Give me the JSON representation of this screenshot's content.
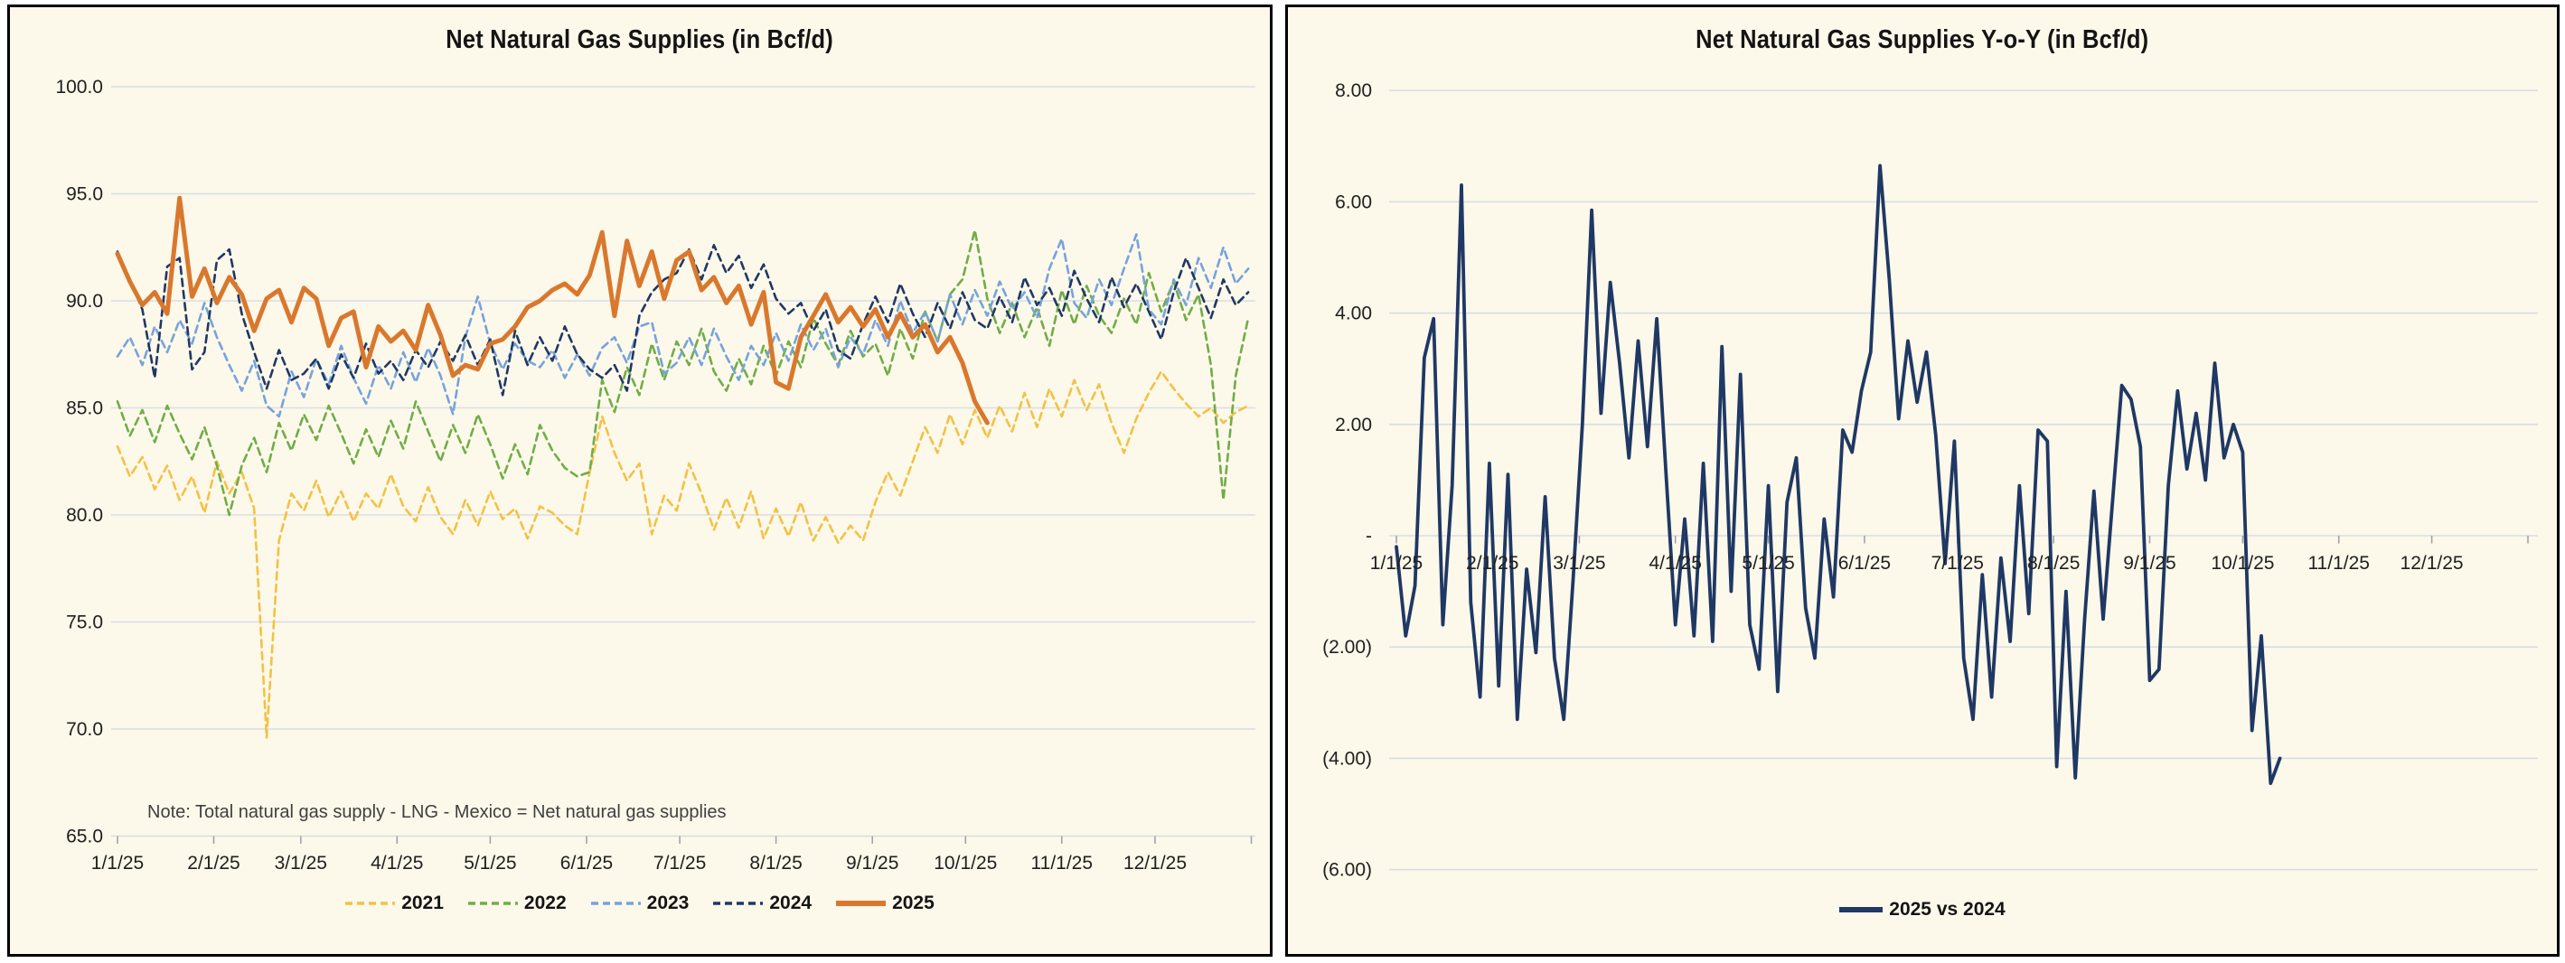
{
  "page": {
    "background": "#FFFFFF",
    "panel_background": "#FCF8EA",
    "panel_border": "#000000",
    "gridline_color": "#D9DDE3",
    "tick_color": "#9AA0A8",
    "axis_text_color": "#202020"
  },
  "chart_data": [
    {
      "type": "line",
      "title": "Net Natural Gas Supplies (in Bcf/d)",
      "note": "Note: Total natural gas supply - LNG - Mexico = Net natural gas supplies",
      "xlabel": "",
      "ylabel": "",
      "ylim": [
        65,
        100
      ],
      "y_tick_values": [
        100,
        95,
        90,
        85,
        80,
        75,
        70,
        65
      ],
      "y_tick_labels": [
        "100.0",
        "95.0",
        "90.0",
        "85.0",
        "80.0",
        "75.0",
        "70.0",
        "65.0"
      ],
      "x_tick_labels": [
        "1/1/25",
        "2/1/25",
        "3/1/25",
        "4/1/25",
        "5/1/25",
        "6/1/25",
        "7/1/25",
        "8/1/25",
        "9/1/25",
        "10/1/25",
        "11/1/25",
        "12/1/25"
      ],
      "month_days": [
        0,
        31,
        59,
        90,
        120,
        151,
        181,
        212,
        243,
        273,
        304,
        334
      ],
      "grid": true,
      "legend_position": "bottom",
      "series": [
        {
          "name": "2021",
          "color": "#F2C245",
          "dash": "dashed",
          "width": 2.6,
          "start_day": 0,
          "step_days": 4,
          "values": [
            83.2,
            81.8,
            82.7,
            81.2,
            82.3,
            80.7,
            81.8,
            80.1,
            82.5,
            81.0,
            82.0,
            80.3,
            69.6,
            78.8,
            81.0,
            80.2,
            81.6,
            79.9,
            81.1,
            79.7,
            81.0,
            80.3,
            81.9,
            80.4,
            79.7,
            81.3,
            79.9,
            79.1,
            80.7,
            79.5,
            81.1,
            79.8,
            80.3,
            78.9,
            80.4,
            80.1,
            79.5,
            79.1,
            82.0,
            84.6,
            82.9,
            81.6,
            82.4,
            79.1,
            80.9,
            80.2,
            82.4,
            81.0,
            79.3,
            80.8,
            79.4,
            81.1,
            78.9,
            80.3,
            79.0,
            80.6,
            78.8,
            79.9,
            78.7,
            79.5,
            78.8,
            80.6,
            82.0,
            80.9,
            82.5,
            84.1,
            82.9,
            84.7,
            83.3,
            84.9,
            83.6,
            85.1,
            83.9,
            85.7,
            84.1,
            85.9,
            84.6,
            86.3,
            84.9,
            86.1,
            84.3,
            82.9,
            84.5,
            85.7,
            86.7,
            85.9,
            85.2,
            84.6,
            85.0,
            84.3,
            84.8,
            85.1
          ]
        },
        {
          "name": "2022",
          "color": "#70AD47",
          "dash": "dashed",
          "width": 2.6,
          "start_day": 0,
          "step_days": 4,
          "values": [
            85.3,
            83.7,
            84.9,
            83.4,
            85.1,
            83.8,
            82.6,
            84.1,
            82.3,
            80.0,
            82.3,
            83.6,
            82.0,
            84.3,
            83.0,
            84.7,
            83.5,
            85.1,
            83.8,
            82.4,
            84.0,
            82.7,
            84.4,
            83.1,
            85.3,
            83.9,
            82.5,
            84.2,
            82.9,
            84.7,
            83.3,
            81.7,
            83.3,
            81.9,
            84.2,
            83.0,
            82.2,
            81.8,
            82.0,
            86.3,
            84.8,
            86.9,
            85.6,
            88.0,
            86.3,
            88.1,
            87.0,
            88.7,
            86.7,
            85.8,
            87.3,
            86.1,
            87.9,
            86.5,
            88.1,
            86.9,
            89.2,
            88.0,
            87.0,
            88.6,
            87.4,
            88.0,
            86.5,
            88.7,
            87.3,
            89.5,
            88.1,
            90.3,
            91.0,
            93.3,
            90.1,
            88.5,
            89.9,
            88.3,
            89.7,
            87.9,
            90.5,
            88.9,
            90.7,
            89.3,
            88.5,
            90.1,
            88.9,
            91.3,
            89.5,
            90.9,
            89.1,
            90.3,
            87.0,
            80.7,
            86.5,
            89.2
          ]
        },
        {
          "name": "2023",
          "color": "#76A3DB",
          "dash": "dashed",
          "width": 2.6,
          "start_day": 0,
          "step_days": 4,
          "values": [
            87.4,
            88.3,
            87.0,
            88.8,
            87.6,
            89.1,
            88.0,
            89.9,
            88.3,
            87.0,
            85.8,
            87.2,
            85.1,
            84.6,
            86.7,
            85.5,
            87.3,
            86.1,
            87.9,
            86.4,
            85.2,
            87.0,
            85.9,
            87.6,
            86.2,
            87.8,
            86.5,
            84.7,
            88.3,
            90.2,
            88.0,
            86.8,
            88.0,
            87.2,
            86.9,
            87.7,
            86.4,
            87.5,
            86.5,
            87.8,
            88.3,
            87.1,
            88.8,
            89.0,
            86.6,
            87.1,
            88.3,
            87.0,
            88.7,
            87.4,
            86.3,
            87.9,
            87.0,
            88.5,
            87.2,
            88.9,
            87.7,
            88.7,
            86.9,
            88.3,
            87.5,
            89.1,
            87.9,
            90.0,
            88.5,
            89.5,
            88.1,
            90.3,
            88.9,
            90.5,
            89.3,
            90.9,
            89.6,
            90.4,
            89.2,
            91.5,
            92.9,
            89.9,
            89.2,
            91.0,
            89.8,
            91.5,
            93.1,
            89.6,
            88.9,
            91.0,
            89.8,
            92.0,
            90.6,
            92.5,
            90.8,
            91.5
          ]
        },
        {
          "name": "2024",
          "color": "#1F3864",
          "dash": "dashed",
          "width": 2.6,
          "start_day": 0,
          "step_days": 4,
          "values": [
            92.3,
            91.0,
            89.6,
            86.4,
            91.6,
            92.0,
            86.8,
            87.6,
            91.9,
            92.4,
            89.4,
            87.6,
            85.9,
            87.7,
            86.3,
            86.6,
            87.3,
            85.9,
            87.5,
            86.4,
            88.0,
            86.6,
            87.2,
            86.3,
            87.7,
            86.9,
            88.1,
            87.2,
            88.4,
            87.0,
            88.2,
            85.6,
            88.6,
            87.0,
            88.3,
            87.2,
            88.8,
            87.5,
            86.8,
            86.4,
            87.0,
            85.8,
            89.3,
            90.4,
            91.0,
            91.3,
            92.4,
            91.0,
            92.6,
            91.3,
            92.1,
            90.6,
            91.7,
            90.1,
            89.4,
            89.9,
            88.6,
            89.6,
            87.7,
            87.3,
            88.9,
            90.2,
            89.0,
            90.8,
            89.4,
            88.3,
            89.9,
            88.7,
            90.4,
            89.1,
            88.7,
            90.2,
            89.0,
            91.1,
            89.8,
            90.6,
            89.3,
            91.4,
            90.1,
            89.0,
            91.1,
            89.7,
            90.8,
            89.5,
            88.2,
            90.4,
            92.0,
            90.6,
            89.2,
            91.0,
            89.8,
            90.4
          ]
        },
        {
          "name": "2025",
          "color": "#D9782D",
          "dash": "solid",
          "width": 5,
          "start_day": 0,
          "step_days": 4,
          "values": [
            92.2,
            90.9,
            89.8,
            90.4,
            89.4,
            94.8,
            90.2,
            91.5,
            89.9,
            91.1,
            90.3,
            88.6,
            90.1,
            90.5,
            89.0,
            90.6,
            90.1,
            87.9,
            89.2,
            89.5,
            86.9,
            88.8,
            88.1,
            88.6,
            87.7,
            89.8,
            88.4,
            86.5,
            87.0,
            86.8,
            88.0,
            88.2,
            88.8,
            89.7,
            90.0,
            90.5,
            90.8,
            90.3,
            91.2,
            93.2,
            89.3,
            92.8,
            90.7,
            92.3,
            90.1,
            91.9,
            92.3,
            90.5,
            91.1,
            89.9,
            90.7,
            88.9,
            90.4,
            86.2,
            85.9,
            88.3,
            89.3,
            90.3,
            89.0,
            89.7,
            88.8,
            89.6,
            88.3,
            89.4,
            88.3,
            88.9,
            87.6,
            88.3,
            87.1,
            85.3,
            84.3
          ]
        }
      ]
    },
    {
      "type": "line",
      "title": "Net Natural Gas Supplies Y-o-Y (in Bcf/d)",
      "xlabel": "",
      "ylabel": "",
      "ylim": [
        -6,
        8
      ],
      "y_tick_values": [
        8,
        6,
        4,
        2,
        0,
        -2,
        -4,
        -6
      ],
      "y_tick_labels": [
        "8.00",
        "6.00",
        "4.00",
        "2.00",
        "-",
        "(2.00)",
        "(4.00)",
        "(6.00)"
      ],
      "x_tick_labels": [
        "1/1/25",
        "2/1/25",
        "3/1/25",
        "4/1/25",
        "5/1/25",
        "6/1/25",
        "7/1/25",
        "8/1/25",
        "9/1/25",
        "10/1/25",
        "11/1/25",
        "12/1/25"
      ],
      "month_days": [
        0,
        31,
        59,
        90,
        120,
        151,
        181,
        212,
        243,
        273,
        304,
        334
      ],
      "grid": true,
      "legend_position": "bottom",
      "series": [
        {
          "name": "2025 vs 2024",
          "color": "#1F3864",
          "dash": "solid",
          "width": 3.8,
          "start_day": 0,
          "step_days": 3,
          "values": [
            -0.2,
            -1.8,
            -0.9,
            3.2,
            3.9,
            -1.6,
            0.9,
            6.3,
            -1.2,
            -2.9,
            1.3,
            -2.7,
            1.1,
            -3.3,
            -0.6,
            -2.1,
            0.7,
            -2.2,
            -3.3,
            -0.8,
            2.0,
            5.85,
            2.2,
            4.55,
            3.1,
            1.4,
            3.5,
            1.6,
            3.9,
            1.1,
            -1.6,
            0.3,
            -1.8,
            1.3,
            -1.9,
            3.4,
            -1.0,
            2.9,
            -1.6,
            -2.4,
            0.9,
            -2.8,
            0.6,
            1.4,
            -1.3,
            -2.2,
            0.3,
            -1.1,
            1.9,
            1.5,
            2.6,
            3.3,
            6.65,
            4.6,
            2.1,
            3.5,
            2.4,
            3.3,
            1.8,
            -0.5,
            1.7,
            -2.2,
            -3.3,
            -0.7,
            -2.9,
            -0.4,
            -1.9,
            0.9,
            -1.4,
            1.9,
            1.7,
            -4.15,
            -1.0,
            -4.35,
            -1.5,
            0.8,
            -1.5,
            0.6,
            2.7,
            2.45,
            1.6,
            -2.6,
            -2.4,
            0.9,
            2.6,
            1.2,
            2.2,
            1.0,
            3.1,
            1.4,
            2.0,
            1.5,
            -3.5,
            -1.8,
            -4.45,
            -4.0
          ]
        }
      ]
    }
  ]
}
